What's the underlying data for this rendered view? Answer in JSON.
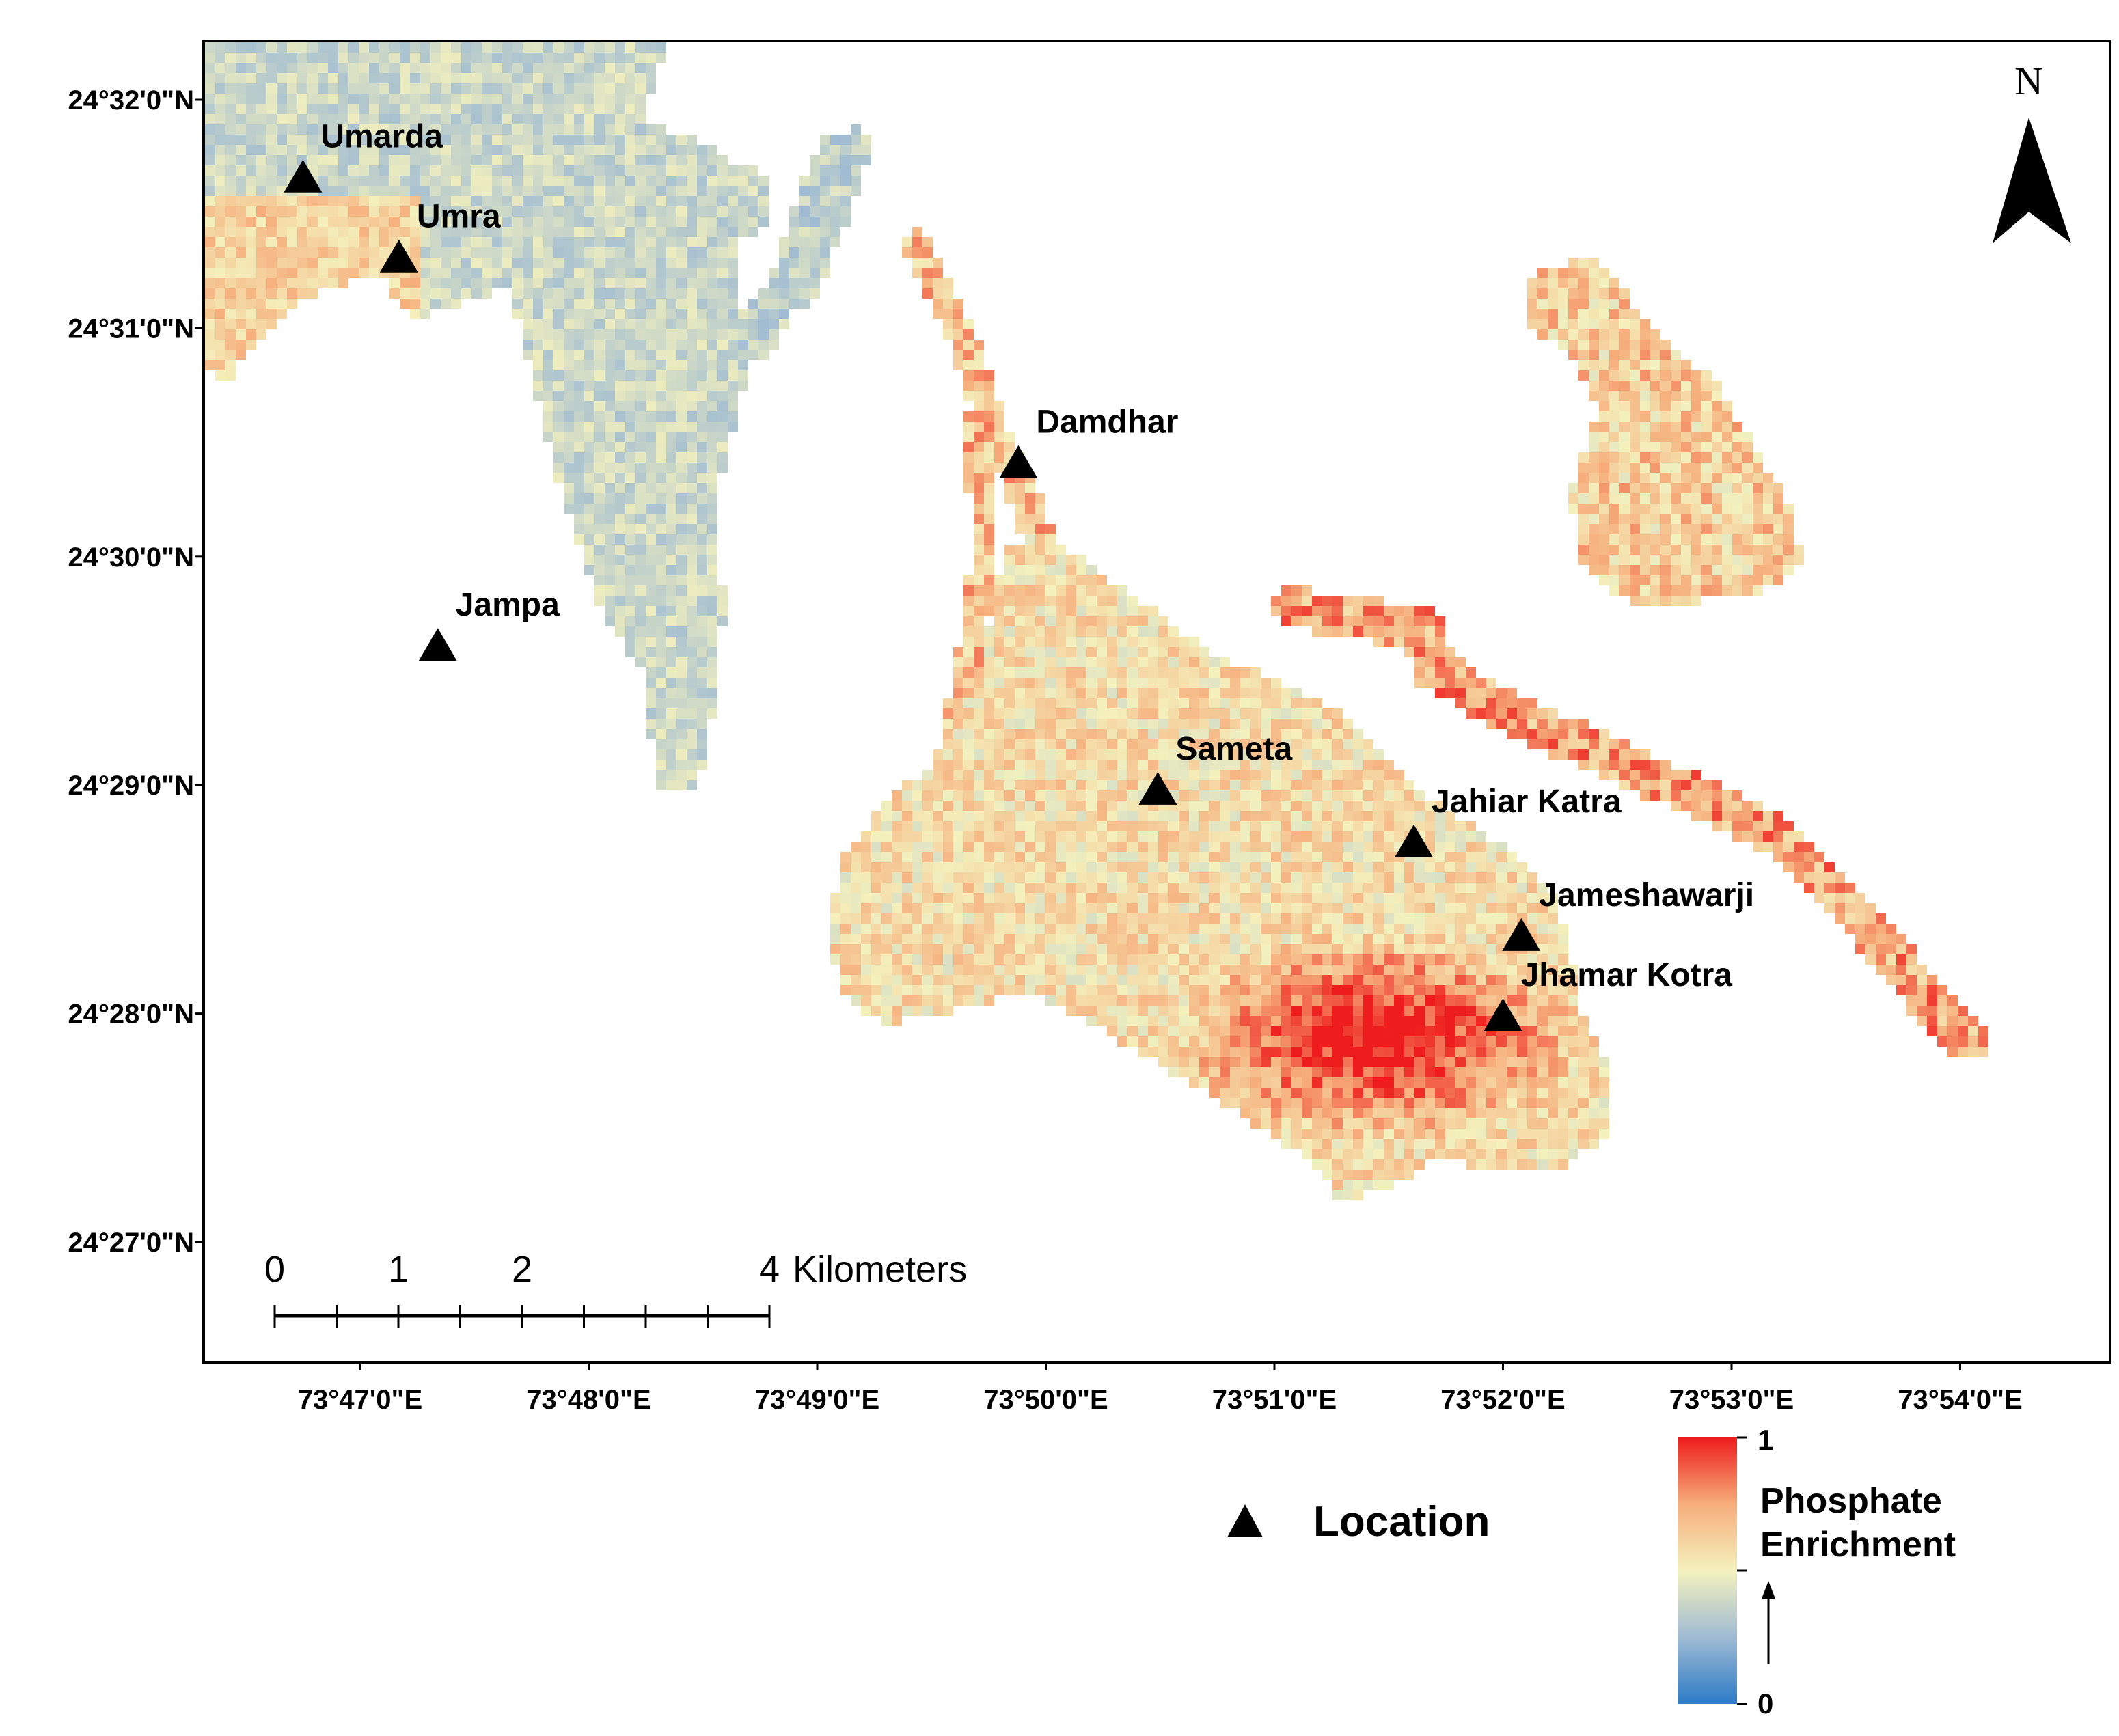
{
  "map": {
    "north_label": "N",
    "lat_ticks": [
      {
        "label": "24°32'0\"N",
        "minutes": 32
      },
      {
        "label": "24°31'0\"N",
        "minutes": 31
      },
      {
        "label": "24°30'0\"N",
        "minutes": 30
      },
      {
        "label": "24°29'0\"N",
        "minutes": 29
      },
      {
        "label": "24°28'0\"N",
        "minutes": 28
      },
      {
        "label": "24°27'0\"N",
        "minutes": 27
      }
    ],
    "lon_ticks": [
      {
        "label": "73°47'0\"E",
        "minutes": 47
      },
      {
        "label": "73°48'0\"E",
        "minutes": 48
      },
      {
        "label": "73°49'0\"E",
        "minutes": 49
      },
      {
        "label": "73°50'0\"E",
        "minutes": 50
      },
      {
        "label": "73°51'0\"E",
        "minutes": 51
      },
      {
        "label": "73°52'0\"E",
        "minutes": 52
      },
      {
        "label": "73°53'0\"E",
        "minutes": 53
      },
      {
        "label": "73°54'0\"E",
        "minutes": 54
      }
    ],
    "locations": [
      {
        "name": "Umarda",
        "lon_min": 46.75,
        "lat_min": 31.66
      },
      {
        "name": "Umra",
        "lon_min": 47.17,
        "lat_min": 31.31
      },
      {
        "name": "Damdhar",
        "lon_min": 49.88,
        "lat_min": 30.41
      },
      {
        "name": "Jampa",
        "lon_min": 47.34,
        "lat_min": 29.61
      },
      {
        "name": "Sameta",
        "lon_min": 50.49,
        "lat_min": 28.98
      },
      {
        "name": "Jahiar Katra",
        "lon_min": 51.61,
        "lat_min": 28.75
      },
      {
        "name": "Jameshawarji",
        "lon_min": 52.08,
        "lat_min": 28.34
      },
      {
        "name": "Jhamar Kotra",
        "lon_min": 52.0,
        "lat_min": 27.99
      }
    ],
    "scale_bar": {
      "labels": [
        "0",
        "1",
        "2",
        "4"
      ],
      "values_km": [
        0,
        1,
        2,
        4
      ],
      "unit": "Kilometers"
    },
    "legend": {
      "location_label": "Location",
      "ramp_title_line1": "Phosphate",
      "ramp_title_line2": "Enrichment",
      "ramp_max": "1",
      "ramp_min": "0"
    },
    "colors": {
      "low": "#2c7bc7",
      "mid_low": "#9fbbd3",
      "mid": "#f4f1bd",
      "mid_high": "#f6ad7b",
      "high": "#ee1c1c"
    }
  }
}
